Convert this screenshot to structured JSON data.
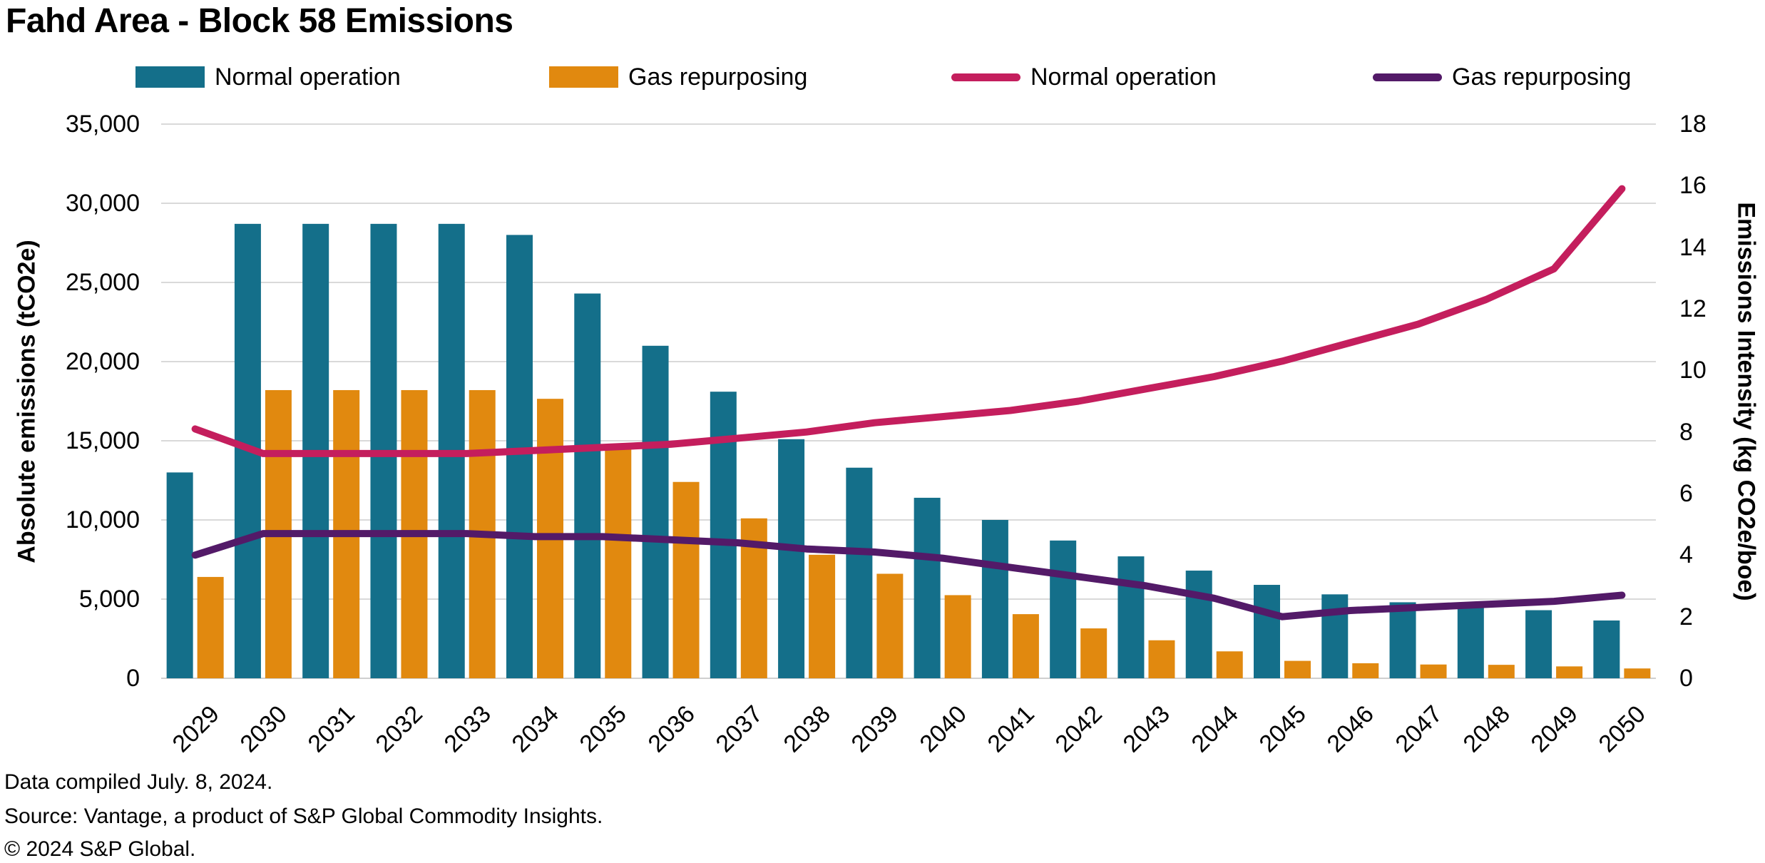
{
  "title": "Fahd Area - Block 58 Emissions",
  "legend": {
    "items": [
      {
        "label": "Normal operation",
        "type": "bar",
        "color": "#146F8A"
      },
      {
        "label": "Gas repurposing",
        "type": "bar",
        "color": "#E1890F"
      },
      {
        "label": "Normal operation",
        "type": "line",
        "color": "#C41E5D"
      },
      {
        "label": "Gas repurposing",
        "type": "line",
        "color": "#531A68"
      }
    ]
  },
  "footer": {
    "line1": "Data compiled July. 8, 2024.",
    "line2": "Source: Vantage, a product of S&P Global Commodity Insights.",
    "line3": "© 2024 S&P Global."
  },
  "chart_data": {
    "type": "bar+line combo, dual axis",
    "title": "Fahd Area - Block 58 Emissions",
    "categories": [
      2029,
      2030,
      2031,
      2032,
      2033,
      2034,
      2035,
      2036,
      2037,
      2038,
      2039,
      2040,
      2041,
      2042,
      2043,
      2044,
      2045,
      2046,
      2047,
      2048,
      2049,
      2050
    ],
    "bar_series": [
      {
        "name": "Normal operation",
        "axis": "left",
        "color": "#146F8A",
        "values": [
          13000,
          28700,
          28700,
          28700,
          28700,
          28000,
          24300,
          21000,
          18100,
          15100,
          13300,
          11400,
          10000,
          8700,
          7700,
          6800,
          5900,
          5300,
          4800,
          4700,
          4300,
          3650
        ]
      },
      {
        "name": "Gas repurposing",
        "axis": "left",
        "color": "#E1890F",
        "values": [
          6400,
          18200,
          18200,
          18200,
          18200,
          17650,
          14700,
          12400,
          10100,
          7800,
          6600,
          5250,
          4050,
          3150,
          2400,
          1700,
          1100,
          950,
          870,
          850,
          750,
          620
        ]
      }
    ],
    "line_series": [
      {
        "name": "Normal operation",
        "axis": "right",
        "color": "#C41E5D",
        "values": [
          8.1,
          7.3,
          7.3,
          7.3,
          7.3,
          7.4,
          7.5,
          7.6,
          7.8,
          8.0,
          8.3,
          8.5,
          8.7,
          9.0,
          9.4,
          9.8,
          10.3,
          10.9,
          11.5,
          12.3,
          13.3,
          15.9
        ]
      },
      {
        "name": "Gas repurposing",
        "axis": "right",
        "color": "#531A68",
        "values": [
          4.0,
          4.7,
          4.7,
          4.7,
          4.7,
          4.6,
          4.6,
          4.5,
          4.4,
          4.2,
          4.1,
          3.9,
          3.6,
          3.3,
          3.0,
          2.6,
          2.0,
          2.2,
          2.3,
          2.4,
          2.5,
          2.7
        ]
      }
    ],
    "left_axis": {
      "label": "Absolute emissions (tCO2e)",
      "min": 0,
      "max": 35000,
      "step": 5000
    },
    "right_axis": {
      "label": "Emissions Intensity (kg CO2e/boe)",
      "min": 0,
      "max": 18,
      "step": 2
    },
    "grid": true,
    "grid_color": "#D9D9D9",
    "legend_position": "top"
  }
}
